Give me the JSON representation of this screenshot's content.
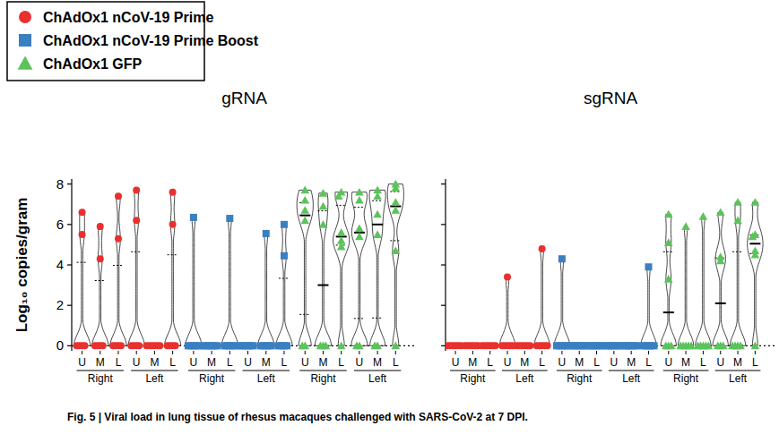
{
  "chart_data": [
    {
      "type": "violin",
      "title": "gRNA",
      "y_label": "Log₁₀ copies/gram",
      "legend": "top-left",
      "ylim": [
        -0.25,
        8.25
      ],
      "yticks": [
        0,
        2,
        4,
        6,
        8
      ],
      "categories": [
        "U",
        "M",
        "L",
        "U",
        "M",
        "L",
        "U",
        "M",
        "L",
        "U",
        "M",
        "L",
        "U",
        "M",
        "L",
        "U",
        "M",
        "L"
      ],
      "groups": [
        "Right",
        "Left",
        "Right",
        "Left",
        "Right",
        "Left"
      ],
      "series": [
        {
          "name": "ChAdOx1 nCoV-19 Prime",
          "color": "#e8312f",
          "marker": "circle",
          "values": [
            [
              6.6,
              5.5,
              0,
              0,
              0,
              0
            ],
            [
              5.9,
              4.3,
              0,
              0,
              0,
              0
            ],
            [
              7.4,
              5.3,
              0,
              0,
              0,
              0
            ],
            [
              7.7,
              6.2,
              0,
              0,
              0,
              0
            ],
            [
              0,
              0,
              0,
              0,
              0,
              0
            ],
            [
              7.6,
              6.0,
              0,
              0,
              0,
              0
            ],
            null,
            null,
            null,
            null,
            null,
            null,
            null,
            null,
            null,
            null,
            null,
            null
          ]
        },
        {
          "name": "ChAdOx1 nCoV-19 Prime Boost",
          "color": "#3a7fc1",
          "marker": "square",
          "values": [
            null,
            null,
            null,
            null,
            null,
            null,
            [
              6.35,
              0,
              0,
              0,
              0,
              0
            ],
            [
              0,
              0,
              0,
              0,
              0,
              0
            ],
            [
              6.3,
              0,
              0,
              0,
              0,
              0
            ],
            [
              0,
              0,
              0,
              0,
              0,
              0
            ],
            [
              5.55,
              0,
              0,
              0,
              0,
              0
            ],
            [
              6.0,
              4.45,
              0,
              0,
              0,
              0
            ],
            null,
            null,
            null,
            null,
            null,
            null
          ]
        },
        {
          "name": "ChAdOx1 GFP",
          "color": "#5cc35c",
          "marker": "triangle",
          "values": [
            null,
            null,
            null,
            null,
            null,
            null,
            null,
            null,
            null,
            null,
            null,
            null,
            [
              7.7,
              7.2,
              6.7,
              6.2,
              0,
              0
            ],
            [
              7.55,
              6.9,
              6.0,
              0,
              0,
              0
            ],
            [
              7.6,
              7.4,
              5.6,
              5.2,
              4.9,
              0
            ],
            [
              7.6,
              7.2,
              5.8,
              5.4,
              0,
              0
            ],
            [
              7.7,
              7.4,
              6.5,
              5.5,
              0,
              0
            ],
            [
              8.0,
              7.8,
              7.1,
              6.7,
              4.7,
              0
            ]
          ]
        }
      ]
    },
    {
      "type": "violin",
      "title": "sgRNA",
      "tick_labels": "x",
      "ylim": [
        -0.25,
        8.25
      ],
      "yticks": [
        0,
        2,
        4,
        6,
        8
      ],
      "categories": [
        "U",
        "M",
        "L",
        "U",
        "M",
        "L",
        "U",
        "M",
        "L",
        "U",
        "M",
        "L",
        "U",
        "M",
        "L",
        "U",
        "M",
        "L"
      ],
      "groups": [
        "Right",
        "Left",
        "Right",
        "Left",
        "Right",
        "Left"
      ],
      "series": [
        {
          "values": [
            [
              0,
              0,
              0,
              0,
              0,
              0
            ],
            [
              0,
              0,
              0,
              0,
              0,
              0
            ],
            [
              0,
              0,
              0,
              0,
              0,
              0
            ],
            [
              3.4,
              0,
              0,
              0,
              0,
              0
            ],
            [
              0,
              0,
              0,
              0,
              0,
              0
            ],
            [
              4.8,
              0,
              0,
              0,
              0,
              0
            ],
            null,
            null,
            null,
            null,
            null,
            null,
            null,
            null,
            null,
            null,
            null,
            null
          ]
        },
        {
          "values": [
            null,
            null,
            null,
            null,
            null,
            null,
            [
              4.3,
              0,
              0,
              0,
              0,
              0
            ],
            [
              0,
              0,
              0,
              0,
              0,
              0
            ],
            [
              0,
              0,
              0,
              0,
              0,
              0
            ],
            [
              0,
              0,
              0,
              0,
              0,
              0
            ],
            [
              0,
              0,
              0,
              0,
              0,
              0
            ],
            [
              3.9,
              0,
              0,
              0,
              0,
              0
            ],
            null,
            null,
            null,
            null,
            null,
            null
          ]
        },
        {
          "values": [
            null,
            null,
            null,
            null,
            null,
            null,
            null,
            null,
            null,
            null,
            null,
            null,
            [
              6.5,
              5.1,
              3.3,
              0,
              0,
              0
            ],
            [
              5.9,
              0,
              0,
              0,
              0,
              0
            ],
            [
              6.4,
              0,
              0,
              0,
              0,
              0
            ],
            [
              6.6,
              4.4,
              4.2,
              0,
              0,
              0
            ],
            [
              7.1,
              6.2,
              0,
              0,
              0,
              0
            ],
            [
              7.1,
              5.5,
              5.4,
              4.7,
              4.5,
              0
            ]
          ]
        }
      ]
    }
  ],
  "caption": "Fig. 5 | Viral load in lung tissue of rhesus macaques challenged with SARS-CoV-2 at 7 DPI."
}
